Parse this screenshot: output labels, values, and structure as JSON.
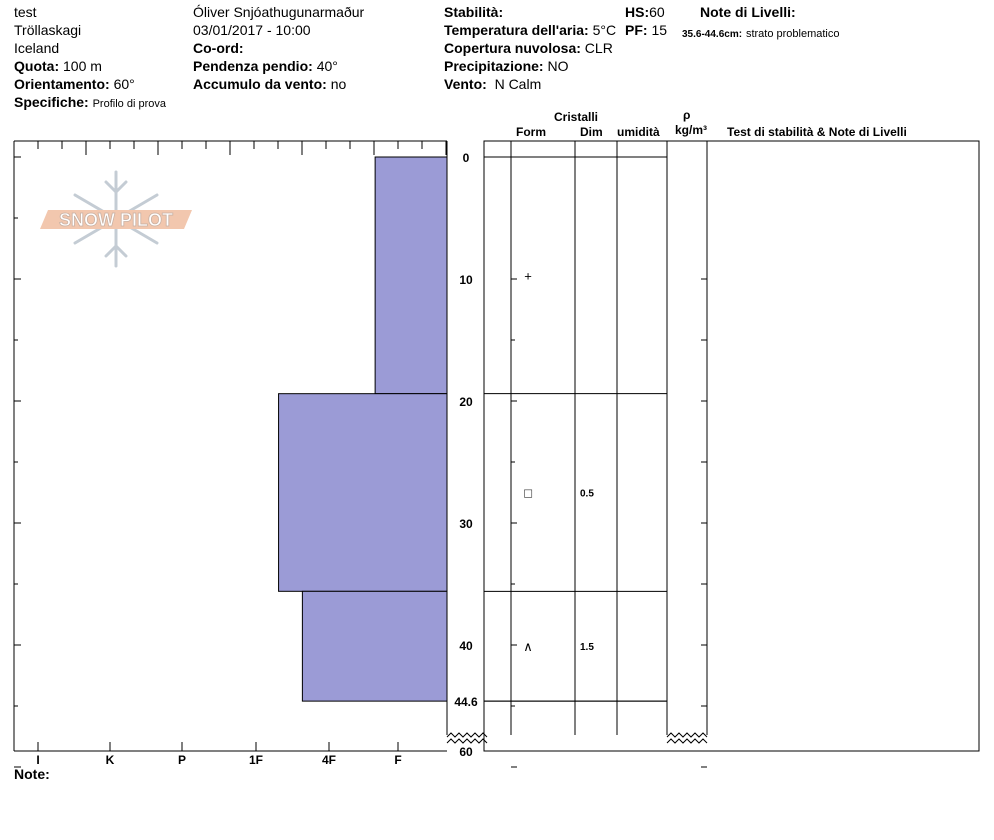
{
  "header": {
    "title": "test",
    "region": "Tröllaskagi",
    "country": "Iceland",
    "elevation_label": "Quota:",
    "elevation_value": "100 m",
    "aspect_label": "Orientamento:",
    "aspect_value": "60°",
    "specifics_label": "Specifiche:",
    "specifics_value": "Profilo di prova",
    "observer": "Óliver Snjóathugunarmaður",
    "datetime": "03/01/2017 - 10:00",
    "coord_label": "Co-ord:",
    "slope_label": "Pendenza pendio:",
    "slope_value": "40°",
    "wind_loading_label": "Accumulo da vento:",
    "wind_loading_value": "no",
    "stability_label": "Stabilità:",
    "air_temp_label": "Temperatura dell'aria:",
    "air_temp_value": "5°C",
    "cloud_label": "Copertura nuvolosa:",
    "cloud_value": "CLR",
    "precip_label": "Precipitazione:",
    "precip_value": "NO",
    "wind_label": "Vento:",
    "wind_value": "N Calm",
    "hs_label": "HS:",
    "hs_value": "60",
    "pf_label": "PF:",
    "pf_value": "15",
    "layer_notes_label": "Note di Livelli:",
    "layer_note_range": "35.6-44.6cm:",
    "layer_note_text": "strato problematico",
    "notes_label": "Note:"
  },
  "logo_text": "SNOW PILOT",
  "columns": {
    "crystals": "Cristalli",
    "form": "Form",
    "dim": "Dim",
    "humidity": "umidità",
    "rho": "ρ",
    "density_unit": "kg/m³",
    "stability_notes": "Test di stabilità & Note di Livelli"
  },
  "colors": {
    "layer_fill": "#9b9bd6",
    "line": "#000000"
  },
  "chart_data": {
    "type": "bar",
    "hardness_scale": [
      "I",
      "K",
      "P",
      "1F",
      "4F",
      "F"
    ],
    "y_ticks": [
      0,
      10,
      20,
      30,
      40,
      44.6,
      60
    ],
    "ylim": [
      0,
      60
    ],
    "layers": [
      {
        "top": 0,
        "bottom": 19.4,
        "hardness_fraction": 0.166
      },
      {
        "top": 19.4,
        "bottom": 35.6,
        "hardness_fraction": 0.389
      },
      {
        "top": 35.6,
        "bottom": 44.6,
        "hardness_fraction": 0.334
      }
    ],
    "grains": [
      {
        "depth": 9.7,
        "form": "+",
        "size": ""
      },
      {
        "depth": 27.5,
        "form": "□",
        "size": "0.5"
      },
      {
        "depth": 40.1,
        "form": "∧",
        "size": "1.5"
      }
    ],
    "profile_bottom": 44.6
  }
}
